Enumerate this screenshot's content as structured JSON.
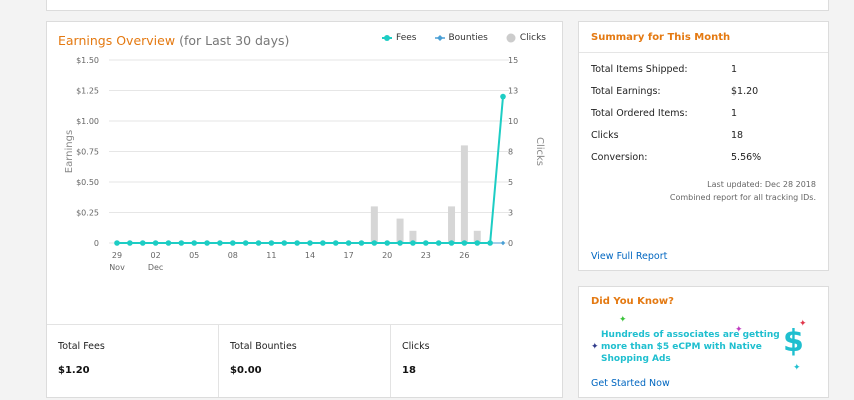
{
  "earnings": {
    "title": "Earnings Overview",
    "subtitle": "(for Last 30 days)",
    "legend": [
      {
        "label": "Fees",
        "color": "#1dcdc4"
      },
      {
        "label": "Bounties",
        "color": "#4a9fd5"
      },
      {
        "label": "Clicks",
        "color": "#cccccc"
      }
    ]
  },
  "chart_data": {
    "type": "line",
    "ylabel": "Earnings",
    "y2label": "Clicks",
    "y_ticks": [
      "$1.50",
      "$1.25",
      "$1.00",
      "$0.75",
      "$0.50",
      "$0.25",
      "0"
    ],
    "y2_ticks": [
      "15",
      "13",
      "10",
      "8",
      "5",
      "3",
      "0"
    ],
    "ylim": [
      0,
      1.5
    ],
    "y2lim": [
      0,
      15
    ],
    "x_ticks": [
      {
        "label": "29",
        "sub": "Nov",
        "day_index": 0
      },
      {
        "label": "02",
        "sub": "Dec",
        "day_index": 3
      },
      {
        "label": "05",
        "sub": "",
        "day_index": 6
      },
      {
        "label": "08",
        "sub": "",
        "day_index": 9
      },
      {
        "label": "11",
        "sub": "",
        "day_index": 12
      },
      {
        "label": "14",
        "sub": "",
        "day_index": 15
      },
      {
        "label": "17",
        "sub": "",
        "day_index": 18
      },
      {
        "label": "20",
        "sub": "",
        "day_index": 21
      },
      {
        "label": "23",
        "sub": "",
        "day_index": 24
      },
      {
        "label": "26",
        "sub": "",
        "day_index": 27
      }
    ],
    "fees": [
      0,
      0,
      0,
      0,
      0,
      0,
      0,
      0,
      0,
      0,
      0,
      0,
      0,
      0,
      0,
      0,
      0,
      0,
      0,
      0,
      0,
      0,
      0,
      0,
      0,
      0,
      0,
      0,
      0,
      0,
      1.2
    ],
    "bounties": [
      0,
      0,
      0,
      0,
      0,
      0,
      0,
      0,
      0,
      0,
      0,
      0,
      0,
      0,
      0,
      0,
      0,
      0,
      0,
      0,
      0,
      0,
      0,
      0,
      0,
      0,
      0,
      0,
      0,
      0,
      0
    ],
    "clicks": [
      0,
      0,
      0,
      0,
      0,
      0,
      0,
      0,
      0,
      0,
      0,
      0,
      0,
      0,
      0,
      0,
      0,
      0,
      0,
      0,
      3,
      0,
      2,
      1,
      0,
      0,
      3,
      8,
      1,
      0,
      0
    ],
    "grid": true
  },
  "totals": [
    {
      "label": "Total Fees",
      "value": "$1.20"
    },
    {
      "label": "Total Bounties",
      "value": "$0.00"
    },
    {
      "label": "Clicks",
      "value": "18"
    }
  ],
  "summary": {
    "title": "Summary for This Month",
    "rows": [
      {
        "label": "Total Items Shipped:",
        "value": "1"
      },
      {
        "label": "Total Earnings:",
        "value": "$1.20"
      },
      {
        "label": "Total Ordered Items:",
        "value": "1"
      },
      {
        "label": "Clicks",
        "value": "18"
      },
      {
        "label": "Conversion:",
        "value": "5.56%"
      }
    ],
    "last_updated": "Last updated: Dec 28 2018",
    "combined_note": "Combined report for all tracking IDs.",
    "view_full_report": "View Full Report"
  },
  "did_you_know": {
    "title": "Did You Know?",
    "text": "Hundreds of associates are getting more than $5 eCPM with Native Shopping Ads",
    "cta": "Get Started Now",
    "icon": "dollar-icon"
  }
}
